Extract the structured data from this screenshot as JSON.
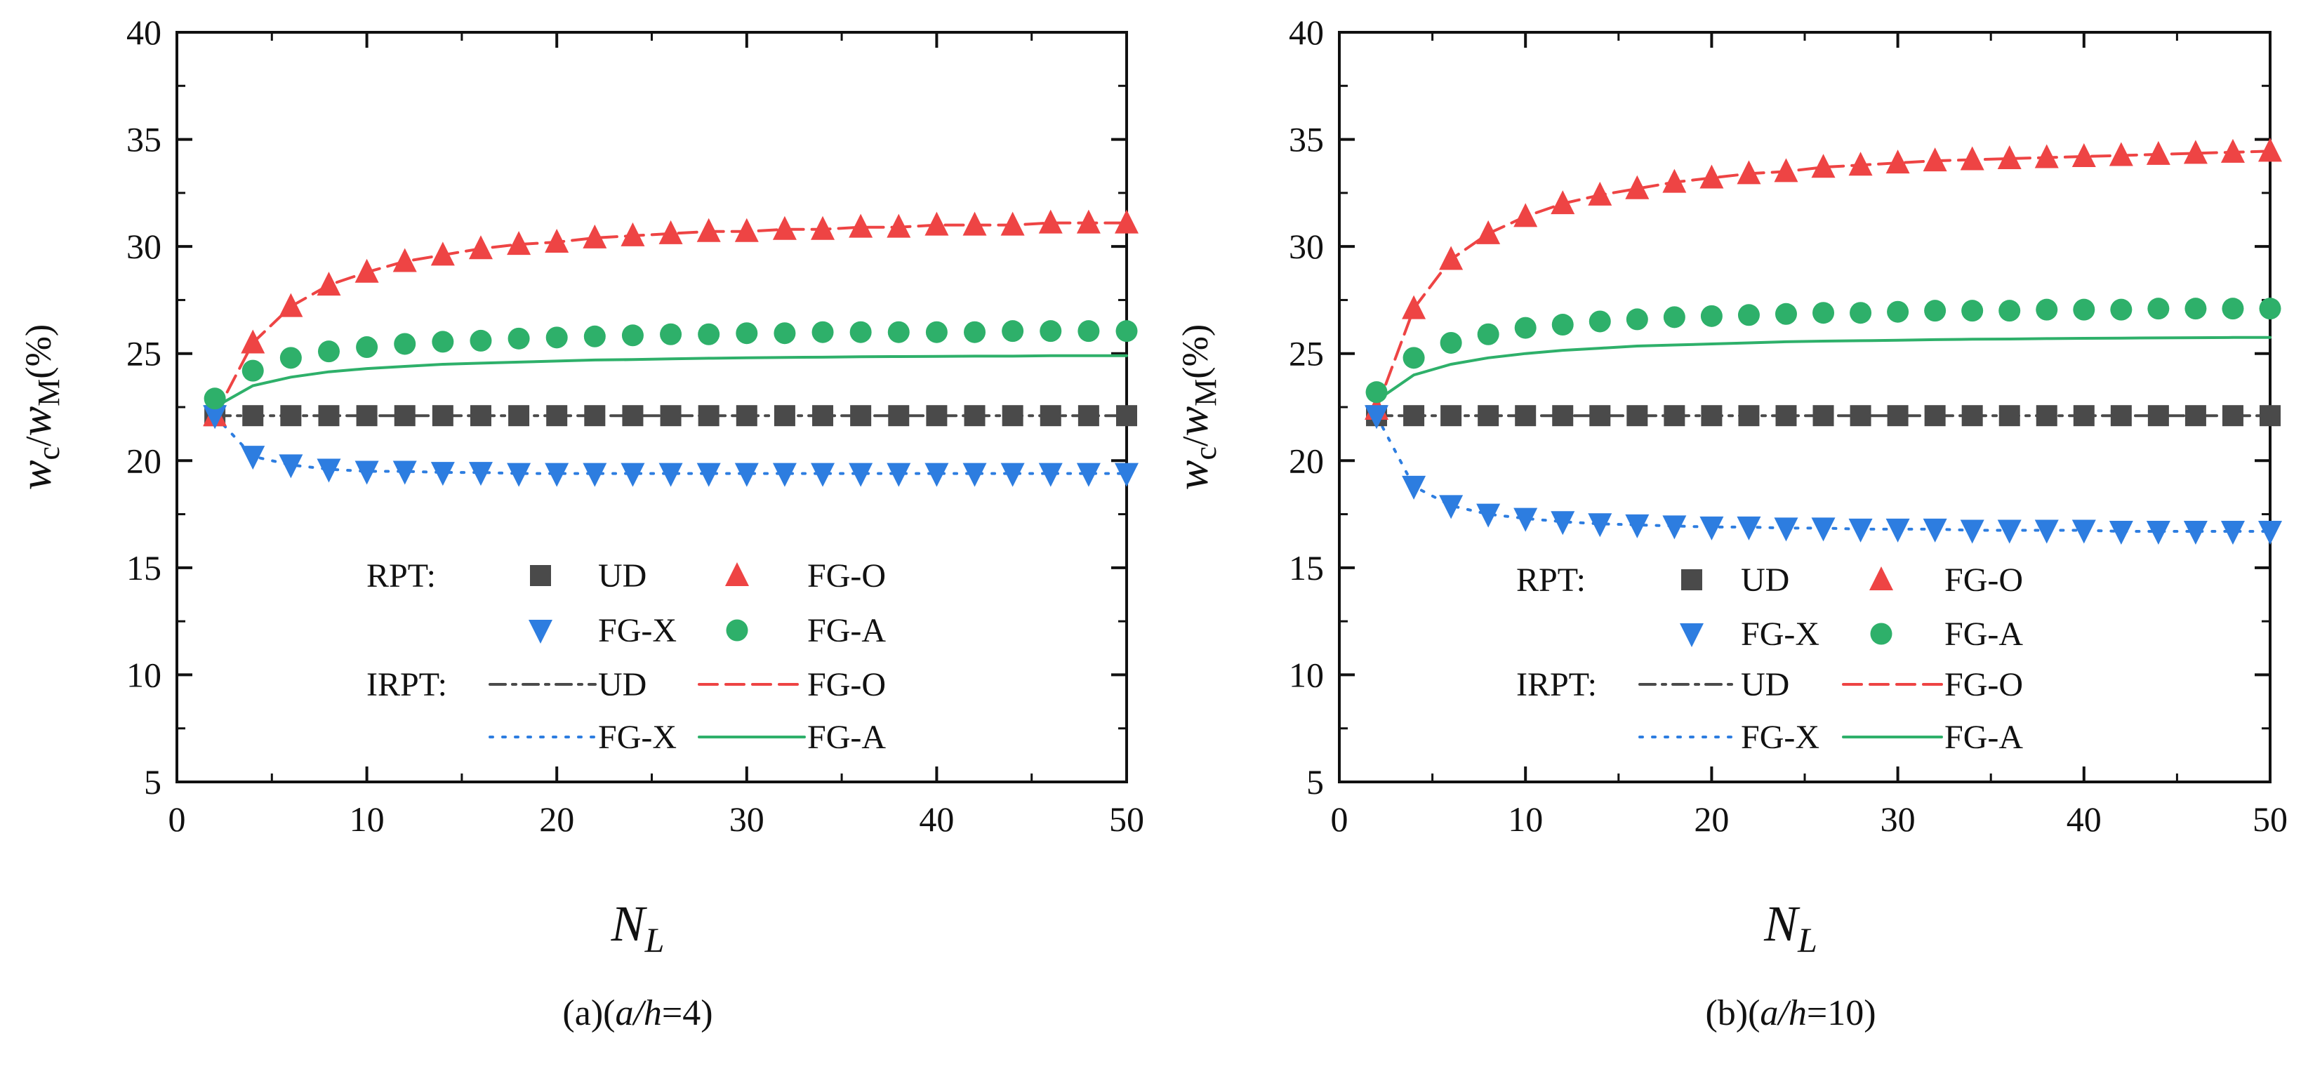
{
  "chart_data": [
    {
      "type": "line",
      "caption_prefix": "(a)(",
      "caption_var": "a/h",
      "caption_value": "=4)",
      "ylabel_w": "w",
      "ylabel_c": "c",
      "ylabel_slash": "/",
      "ylabel_M": "M",
      "ylabel_pct": "(%)",
      "xlabel_N": "N",
      "xlabel_L": "L",
      "xlim": [
        0,
        50
      ],
      "ylim": [
        5,
        40
      ],
      "xticks": [
        0,
        10,
        20,
        30,
        40,
        50
      ],
      "yticks": [
        5,
        10,
        15,
        20,
        25,
        30,
        35,
        40
      ],
      "x": [
        2,
        4,
        6,
        8,
        10,
        12,
        14,
        16,
        18,
        20,
        22,
        24,
        26,
        28,
        30,
        32,
        34,
        36,
        38,
        40,
        42,
        44,
        46,
        48,
        50
      ],
      "series": [
        {
          "name": "UD",
          "group": "RPT",
          "marker": "square",
          "color": "#4a4a4a",
          "values": [
            22.1,
            22.1,
            22.1,
            22.1,
            22.1,
            22.1,
            22.1,
            22.1,
            22.1,
            22.1,
            22.1,
            22.1,
            22.1,
            22.1,
            22.1,
            22.1,
            22.1,
            22.1,
            22.1,
            22.1,
            22.1,
            22.1,
            22.1,
            22.1,
            22.1
          ]
        },
        {
          "name": "FG-O",
          "group": "RPT",
          "marker": "triangle-up",
          "color": "#ee4444",
          "values": [
            22.1,
            25.5,
            27.2,
            28.2,
            28.8,
            29.3,
            29.6,
            29.9,
            30.1,
            30.2,
            30.4,
            30.5,
            30.6,
            30.7,
            30.7,
            30.8,
            30.8,
            30.9,
            30.9,
            31.0,
            31.0,
            31.0,
            31.1,
            31.1,
            31.1
          ]
        },
        {
          "name": "FG-X",
          "group": "RPT",
          "marker": "triangle-down",
          "color": "#2d7de0",
          "values": [
            22.1,
            20.2,
            19.8,
            19.6,
            19.5,
            19.5,
            19.45,
            19.45,
            19.4,
            19.4,
            19.4,
            19.4,
            19.4,
            19.4,
            19.4,
            19.4,
            19.4,
            19.4,
            19.4,
            19.4,
            19.4,
            19.4,
            19.4,
            19.4,
            19.4
          ]
        },
        {
          "name": "FG-A",
          "group": "RPT",
          "marker": "circle",
          "color": "#2eb06a",
          "values": [
            22.9,
            24.2,
            24.8,
            25.1,
            25.3,
            25.45,
            25.55,
            25.6,
            25.7,
            25.75,
            25.8,
            25.85,
            25.9,
            25.9,
            25.95,
            25.95,
            26.0,
            26.0,
            26.0,
            26.0,
            26.0,
            26.05,
            26.05,
            26.05,
            26.05
          ]
        },
        {
          "name": "UD",
          "group": "IRPT",
          "line": "dashdot",
          "color": "#4a4a4a",
          "values": [
            22.1,
            22.1,
            22.1,
            22.1,
            22.1,
            22.1,
            22.1,
            22.1,
            22.1,
            22.1,
            22.1,
            22.1,
            22.1,
            22.1,
            22.1,
            22.1,
            22.1,
            22.1,
            22.1,
            22.1,
            22.1,
            22.1,
            22.1,
            22.1,
            22.1
          ]
        },
        {
          "name": "FG-O",
          "group": "IRPT",
          "line": "dashed",
          "color": "#ee4444",
          "values": [
            22.1,
            25.5,
            27.2,
            28.2,
            28.8,
            29.3,
            29.6,
            29.9,
            30.1,
            30.2,
            30.4,
            30.5,
            30.6,
            30.7,
            30.7,
            30.8,
            30.8,
            30.9,
            30.9,
            31.0,
            31.0,
            31.0,
            31.1,
            31.1,
            31.1
          ]
        },
        {
          "name": "FG-X",
          "group": "IRPT",
          "line": "dotted",
          "color": "#2d7de0",
          "values": [
            22.1,
            20.2,
            19.8,
            19.6,
            19.5,
            19.5,
            19.45,
            19.45,
            19.4,
            19.4,
            19.4,
            19.4,
            19.4,
            19.4,
            19.4,
            19.4,
            19.4,
            19.4,
            19.4,
            19.4,
            19.4,
            19.4,
            19.4,
            19.4,
            19.4
          ]
        },
        {
          "name": "FG-A",
          "group": "IRPT",
          "line": "solid",
          "color": "#2eb06a",
          "values": [
            22.5,
            23.5,
            23.9,
            24.15,
            24.3,
            24.4,
            24.5,
            24.55,
            24.6,
            24.65,
            24.7,
            24.72,
            24.75,
            24.78,
            24.8,
            24.82,
            24.83,
            24.85,
            24.86,
            24.87,
            24.88,
            24.88,
            24.9,
            24.9,
            24.9
          ]
        }
      ],
      "legend": {
        "placement": "lower-center",
        "rpt_label": "RPT:",
        "irpt_label": "IRPT:",
        "rpt_rows": [
          [
            "UD",
            "FG-O"
          ],
          [
            "FG-X",
            "FG-A"
          ]
        ],
        "irpt_rows": [
          [
            "UD",
            "FG-O"
          ],
          [
            "FG-X",
            "FG-A"
          ]
        ]
      }
    },
    {
      "type": "line",
      "caption_prefix": "(b)(",
      "caption_var": "a/h",
      "caption_value": "=10)",
      "ylabel_w": "w",
      "ylabel_c": "c",
      "ylabel_slash": "/",
      "ylabel_M": "M",
      "ylabel_pct": "(%)",
      "xlabel_N": "N",
      "xlabel_L": "L",
      "xlim": [
        0,
        50
      ],
      "ylim": [
        5,
        40
      ],
      "xticks": [
        0,
        10,
        20,
        30,
        40,
        50
      ],
      "yticks": [
        5,
        10,
        15,
        20,
        25,
        30,
        35,
        40
      ],
      "x": [
        2,
        4,
        6,
        8,
        10,
        12,
        14,
        16,
        18,
        20,
        22,
        24,
        26,
        28,
        30,
        32,
        34,
        36,
        38,
        40,
        42,
        44,
        46,
        48,
        50
      ],
      "series": [
        {
          "name": "UD",
          "group": "RPT",
          "marker": "square",
          "color": "#4a4a4a",
          "values": [
            22.1,
            22.1,
            22.1,
            22.1,
            22.1,
            22.1,
            22.1,
            22.1,
            22.1,
            22.1,
            22.1,
            22.1,
            22.1,
            22.1,
            22.1,
            22.1,
            22.1,
            22.1,
            22.1,
            22.1,
            22.1,
            22.1,
            22.1,
            22.1,
            22.1
          ]
        },
        {
          "name": "FG-O",
          "group": "RPT",
          "marker": "triangle-up",
          "color": "#ee4444",
          "values": [
            22.4,
            27.1,
            29.4,
            30.6,
            31.4,
            32.0,
            32.4,
            32.7,
            33.0,
            33.2,
            33.4,
            33.5,
            33.7,
            33.8,
            33.9,
            34.0,
            34.05,
            34.1,
            34.15,
            34.2,
            34.25,
            34.3,
            34.35,
            34.4,
            34.45
          ]
        },
        {
          "name": "FG-X",
          "group": "RPT",
          "marker": "triangle-down",
          "color": "#2d7de0",
          "values": [
            22.1,
            18.8,
            17.9,
            17.5,
            17.3,
            17.15,
            17.05,
            17.0,
            16.95,
            16.9,
            16.9,
            16.85,
            16.85,
            16.8,
            16.8,
            16.8,
            16.75,
            16.75,
            16.75,
            16.75,
            16.7,
            16.7,
            16.7,
            16.7,
            16.7
          ]
        },
        {
          "name": "FG-A",
          "group": "RPT",
          "marker": "circle",
          "color": "#2eb06a",
          "values": [
            23.2,
            24.8,
            25.5,
            25.9,
            26.2,
            26.35,
            26.5,
            26.6,
            26.7,
            26.75,
            26.8,
            26.85,
            26.9,
            26.9,
            26.95,
            27.0,
            27.0,
            27.0,
            27.05,
            27.05,
            27.05,
            27.1,
            27.1,
            27.1,
            27.1
          ]
        },
        {
          "name": "UD",
          "group": "IRPT",
          "line": "dashdot",
          "color": "#4a4a4a",
          "values": [
            22.1,
            22.1,
            22.1,
            22.1,
            22.1,
            22.1,
            22.1,
            22.1,
            22.1,
            22.1,
            22.1,
            22.1,
            22.1,
            22.1,
            22.1,
            22.1,
            22.1,
            22.1,
            22.1,
            22.1,
            22.1,
            22.1,
            22.1,
            22.1,
            22.1
          ]
        },
        {
          "name": "FG-O",
          "group": "IRPT",
          "line": "dashed",
          "color": "#ee4444",
          "values": [
            22.4,
            27.1,
            29.4,
            30.6,
            31.4,
            32.0,
            32.4,
            32.7,
            33.0,
            33.2,
            33.4,
            33.5,
            33.7,
            33.8,
            33.9,
            34.0,
            34.05,
            34.1,
            34.15,
            34.2,
            34.25,
            34.3,
            34.35,
            34.4,
            34.45
          ]
        },
        {
          "name": "FG-X",
          "group": "IRPT",
          "line": "dotted",
          "color": "#2d7de0",
          "values": [
            22.1,
            18.8,
            17.9,
            17.5,
            17.3,
            17.15,
            17.05,
            17.0,
            16.95,
            16.9,
            16.9,
            16.85,
            16.85,
            16.8,
            16.8,
            16.8,
            16.75,
            16.75,
            16.75,
            16.75,
            16.7,
            16.7,
            16.7,
            16.7,
            16.7
          ]
        },
        {
          "name": "FG-A",
          "group": "IRPT",
          "line": "solid",
          "color": "#2eb06a",
          "values": [
            22.8,
            24.0,
            24.5,
            24.8,
            25.0,
            25.15,
            25.25,
            25.35,
            25.4,
            25.45,
            25.5,
            25.55,
            25.58,
            25.6,
            25.62,
            25.65,
            25.67,
            25.68,
            25.7,
            25.71,
            25.72,
            25.73,
            25.74,
            25.75,
            25.75
          ]
        }
      ],
      "legend": {
        "placement": "lower-center",
        "rpt_label": "RPT:",
        "irpt_label": "IRPT:",
        "rpt_rows": [
          [
            "UD",
            "FG-O"
          ],
          [
            "FG-X",
            "FG-A"
          ]
        ],
        "irpt_rows": [
          [
            "UD",
            "FG-O"
          ],
          [
            "FG-X",
            "FG-A"
          ]
        ]
      }
    }
  ]
}
